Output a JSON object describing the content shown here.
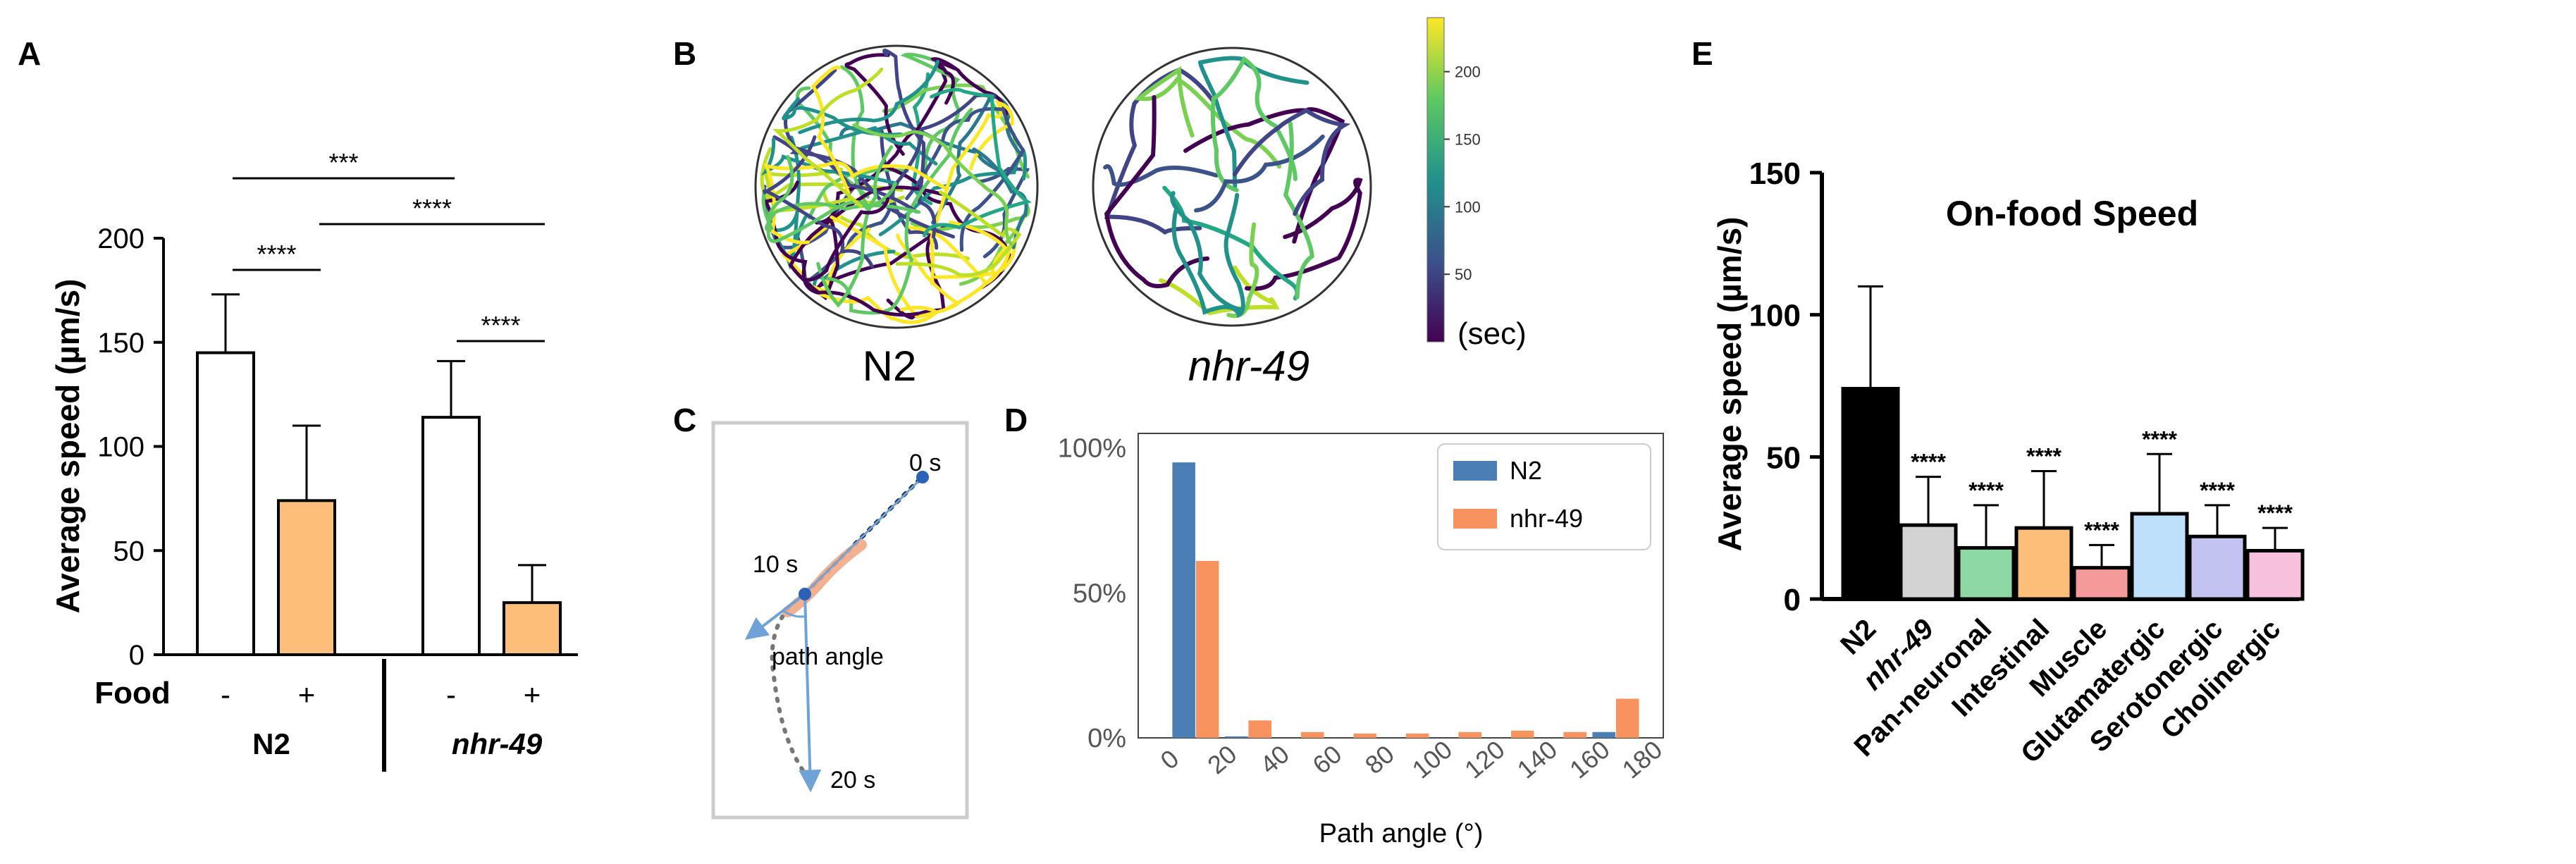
{
  "panels": {
    "A": "A",
    "B": "B",
    "C": "C",
    "D": "D",
    "E": "E"
  },
  "colors": {
    "orange": "#FDBE7A",
    "black": "#000000",
    "n2_blue": "#4B7EB4",
    "nhr_orange": "#F8925E",
    "path_blue": "#6FA3D8",
    "worm": "#F2A985",
    "dot": "#2962B8"
  },
  "chart_data": [
    {
      "type": "bar",
      "panel": "A",
      "ylabel": "Average speed (µm/s)",
      "ylim": [
        0,
        200
      ],
      "yticks": [
        0,
        50,
        100,
        150,
        200
      ],
      "row_label": "Food",
      "food_labels": [
        "-",
        "+",
        "-",
        "+"
      ],
      "group_labels": [
        "N2",
        "nhr-49"
      ],
      "values": [
        145,
        74,
        114,
        25
      ],
      "errors": [
        28,
        36,
        27,
        18
      ],
      "fills": [
        "#ffffff",
        "#FDBE7A",
        "#ffffff",
        "#FDBE7A"
      ],
      "sig": [
        "***",
        "****",
        "****",
        "****"
      ]
    },
    {
      "type": "line",
      "panel": "B",
      "labels": [
        "N2",
        "nhr-49"
      ],
      "colorbar": {
        "ticks": [
          50,
          100,
          150,
          200
        ],
        "range": [
          0,
          240
        ],
        "unit": "(sec)"
      }
    },
    {
      "type": "line",
      "panel": "C",
      "labels": {
        "t0": "0 s",
        "t10": "10 s",
        "t20": "20 s",
        "angle": "path angle"
      }
    },
    {
      "type": "bar",
      "panel": "D",
      "xlabel": "Path angle (°)",
      "ylabel": "",
      "ylim": [
        0,
        1
      ],
      "yticks": [
        "0%",
        "50%",
        "100%"
      ],
      "xticks": [
        0,
        20,
        40,
        60,
        80,
        100,
        120,
        140,
        160,
        180
      ],
      "bin_centers": [
        10,
        30,
        50,
        70,
        90,
        110,
        130,
        150,
        170
      ],
      "series": [
        {
          "name": "N2",
          "values": [
            0.95,
            0.005,
            0,
            0,
            0,
            0,
            0,
            0,
            0.02
          ]
        },
        {
          "name": "nhr-49",
          "values": [
            0.61,
            0.06,
            0.02,
            0.015,
            0.015,
            0.02,
            0.025,
            0.02,
            0.135
          ]
        }
      ]
    },
    {
      "type": "bar",
      "panel": "E",
      "title": "On-food Speed",
      "ylabel": "Average speed (µm/s)",
      "ylim": [
        0,
        150
      ],
      "yticks": [
        0,
        50,
        100,
        150
      ],
      "categories": [
        "N2",
        "nhr-49",
        "Pan-neuronal",
        "Intestinal",
        "Muscle",
        "Glutamatergic",
        "Serotonergic",
        "Cholinergic"
      ],
      "values": [
        74,
        26,
        18,
        25,
        11,
        30,
        22,
        17
      ],
      "errors": [
        36,
        17,
        15,
        20,
        8,
        21,
        11,
        8
      ],
      "colors": [
        "#000000",
        "#D3D3D3",
        "#8ED8A3",
        "#FDBE7A",
        "#F59A9A",
        "#BFE0FA",
        "#C3C3F2",
        "#F7C1DD"
      ],
      "sig": [
        "",
        "****",
        "****",
        "****",
        "****",
        "****",
        "****",
        "****"
      ]
    }
  ]
}
